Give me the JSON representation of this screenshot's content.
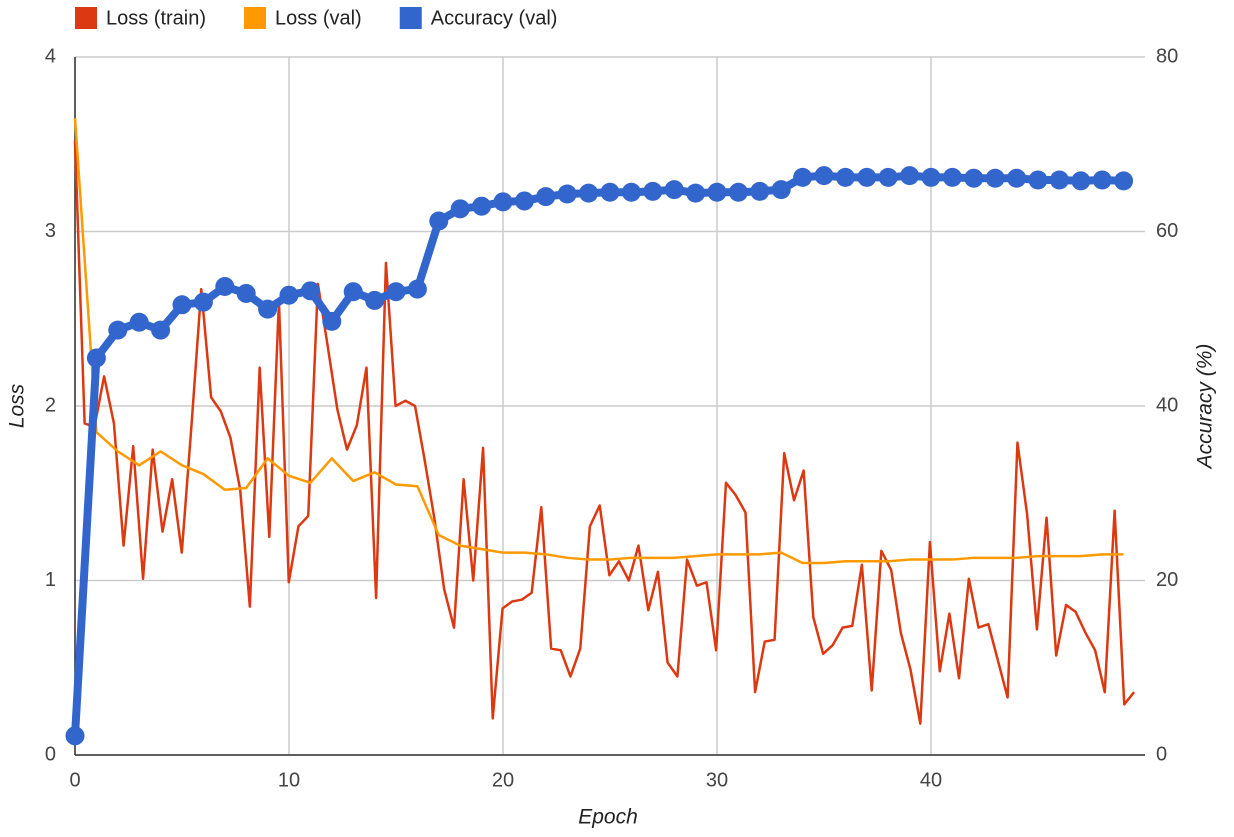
{
  "chart_data": {
    "type": "line",
    "xlabel": "Epoch",
    "ylabel": "Loss",
    "y2label": "Accuracy (%)",
    "xlim": [
      0,
      50
    ],
    "xticks": [
      0,
      10,
      20,
      30,
      40
    ],
    "ylim": [
      0,
      4
    ],
    "yticks": [
      0,
      1,
      2,
      3,
      4
    ],
    "y2lim": [
      0,
      80
    ],
    "y2ticks": [
      0,
      20,
      40,
      60,
      80
    ],
    "grid": true,
    "legend": "top-left",
    "series": [
      {
        "name": "Loss (train)",
        "color": "#dc3912",
        "line_width": 2.5,
        "markers": false,
        "x": [
          0,
          0.45,
          0.91,
          1.36,
          1.82,
          2.27,
          2.72,
          3.18,
          3.63,
          4.09,
          4.54,
          4.99,
          5.45,
          5.9,
          6.36,
          6.81,
          7.26,
          7.72,
          8.17,
          8.63,
          9.08,
          9.53,
          9.99,
          10.44,
          10.9,
          11.35,
          11.8,
          12.26,
          12.71,
          13.17,
          13.62,
          14.07,
          14.53,
          14.98,
          15.44,
          15.89,
          16.34,
          16.8,
          17.25,
          17.71,
          18.16,
          18.61,
          19.07,
          19.52,
          19.98,
          20.43,
          20.88,
          21.34,
          21.79,
          22.25,
          22.7,
          23.15,
          23.61,
          24.06,
          24.52,
          24.97,
          25.42,
          25.88,
          26.33,
          26.79,
          27.24,
          27.69,
          28.15,
          28.6,
          29.06,
          29.51,
          29.96,
          30.42,
          30.87,
          31.33,
          31.78,
          32.23,
          32.69,
          33.14,
          33.6,
          34.05,
          34.5,
          34.96,
          35.41,
          35.87,
          36.32,
          36.77,
          37.23,
          37.68,
          38.14,
          38.59,
          39.04,
          39.5,
          39.95,
          40.41,
          40.86,
          41.31,
          41.77,
          42.22,
          42.68,
          43.13,
          43.58,
          44.04,
          44.49,
          44.95,
          45.4,
          45.85,
          46.31,
          46.76,
          47.22,
          47.67,
          48.12,
          48.58,
          49.03,
          49.49
        ],
        "values": [
          3.52,
          1.9,
          1.88,
          2.17,
          1.9,
          1.2,
          1.77,
          1.01,
          1.75,
          1.28,
          1.58,
          1.16,
          1.9,
          2.67,
          2.05,
          1.97,
          1.82,
          1.52,
          0.85,
          2.22,
          1.25,
          2.6,
          0.99,
          1.31,
          1.37,
          2.7,
          2.35,
          1.98,
          1.75,
          1.89,
          2.22,
          0.9,
          2.82,
          2.0,
          2.03,
          2.0,
          1.69,
          1.35,
          0.95,
          0.73,
          1.58,
          1.0,
          1.76,
          0.21,
          0.84,
          0.88,
          0.89,
          0.93,
          1.42,
          0.61,
          0.6,
          0.45,
          0.61,
          1.31,
          1.43,
          1.03,
          1.11,
          1.0,
          1.2,
          0.83,
          1.05,
          0.53,
          0.45,
          1.12,
          0.97,
          0.99,
          0.6,
          1.56,
          1.49,
          1.39,
          0.36,
          0.65,
          0.66,
          1.73,
          1.46,
          1.63,
          0.79,
          0.58,
          0.63,
          0.73,
          0.74,
          1.09,
          0.37,
          1.17,
          1.06,
          0.7,
          0.49,
          0.18,
          1.22,
          0.48,
          0.81,
          0.44,
          1.01,
          0.73,
          0.75,
          0.54,
          0.33,
          1.79,
          1.38,
          0.72,
          1.36,
          0.57,
          0.86,
          0.82,
          0.7,
          0.6,
          0.36,
          1.4,
          0.29,
          0.36
        ]
      },
      {
        "name": "Loss (val)",
        "color": "#ff9900",
        "line_width": 2.5,
        "markers": false,
        "x": [
          0,
          1,
          2,
          3,
          4,
          5,
          6,
          7,
          8,
          9,
          10,
          11,
          12,
          13,
          14,
          15,
          16,
          17,
          18,
          19,
          20,
          21,
          22,
          23,
          24,
          25,
          26,
          27,
          28,
          29,
          30,
          31,
          32,
          33,
          34,
          35,
          36,
          37,
          38,
          39,
          40,
          41,
          42,
          43,
          44,
          45,
          46,
          47,
          48,
          49
        ],
        "values": [
          3.65,
          1.85,
          1.74,
          1.66,
          1.74,
          1.66,
          1.61,
          1.52,
          1.53,
          1.7,
          1.6,
          1.56,
          1.7,
          1.57,
          1.62,
          1.55,
          1.54,
          1.26,
          1.2,
          1.18,
          1.16,
          1.16,
          1.15,
          1.13,
          1.12,
          1.12,
          1.13,
          1.13,
          1.13,
          1.14,
          1.15,
          1.15,
          1.15,
          1.16,
          1.1,
          1.1,
          1.11,
          1.11,
          1.11,
          1.12,
          1.12,
          1.12,
          1.13,
          1.13,
          1.13,
          1.14,
          1.14,
          1.14,
          1.15,
          1.15
        ]
      },
      {
        "name": "Accuracy (val)",
        "color": "#3366cc",
        "line_width": 8,
        "markers": true,
        "axis": "y2",
        "x": [
          0,
          1,
          2,
          3,
          4,
          5,
          6,
          7,
          8,
          9,
          10,
          11,
          12,
          13,
          14,
          15,
          16,
          17,
          18,
          19,
          20,
          21,
          22,
          23,
          24,
          25,
          26,
          27,
          28,
          29,
          30,
          31,
          32,
          33,
          34,
          35,
          36,
          37,
          38,
          39,
          40,
          41,
          42,
          43,
          44,
          45,
          46,
          47,
          48,
          49
        ],
        "values": [
          2.2,
          45.5,
          48.7,
          49.6,
          48.7,
          51.6,
          51.9,
          53.7,
          52.9,
          51.1,
          52.7,
          53.2,
          49.7,
          53.1,
          52.1,
          53.1,
          53.4,
          61.2,
          62.6,
          62.9,
          63.4,
          63.5,
          64.0,
          64.3,
          64.4,
          64.5,
          64.5,
          64.6,
          64.8,
          64.4,
          64.5,
          64.5,
          64.6,
          64.8,
          66.2,
          66.4,
          66.2,
          66.2,
          66.2,
          66.4,
          66.2,
          66.2,
          66.1,
          66.1,
          66.1,
          65.9,
          65.9,
          65.8,
          65.9,
          65.8
        ]
      }
    ]
  }
}
